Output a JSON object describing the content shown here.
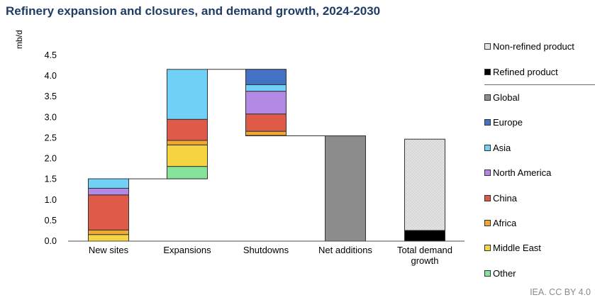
{
  "title": "Refinery expansion and closures, and demand growth, 2024-2030",
  "source": "IEA. CC BY 4.0",
  "chart_data": {
    "type": "bar",
    "subtype": "waterfall-stacked",
    "ylabel": "mb/d",
    "ylim": [
      0,
      4.5
    ],
    "yticks": [
      "0.0",
      "0.5",
      "1.0",
      "1.5",
      "2.0",
      "2.5",
      "3.0",
      "3.5",
      "4.0",
      "4.5"
    ],
    "grid": false,
    "legend_position": "right",
    "categories": [
      "New sites",
      "Expansions",
      "Shutdowns",
      "Net additions",
      "Total demand growth"
    ],
    "bars": [
      {
        "category": "New sites",
        "base": 0,
        "segments": [
          {
            "series": "Middle East",
            "value": 0.16
          },
          {
            "series": "Africa",
            "value": 0.11
          },
          {
            "series": "China",
            "value": 0.85
          },
          {
            "series": "North America",
            "value": 0.16
          },
          {
            "series": "Asia",
            "value": 0.23
          }
        ]
      },
      {
        "category": "Expansions",
        "base": 1.51,
        "segments": [
          {
            "series": "Other",
            "value": 0.3
          },
          {
            "series": "Middle East",
            "value": 0.52
          },
          {
            "series": "Africa",
            "value": 0.11
          },
          {
            "series": "China",
            "value": 0.51
          },
          {
            "series": "Asia",
            "value": 1.21
          }
        ]
      },
      {
        "category": "Shutdowns",
        "base": 2.55,
        "segments": [
          {
            "series": "Middle East",
            "value": 0.01
          },
          {
            "series": "Africa",
            "value": 0.1
          },
          {
            "series": "China",
            "value": 0.42
          },
          {
            "series": "North America",
            "value": 0.55
          },
          {
            "series": "Asia",
            "value": 0.16
          },
          {
            "series": "Europe",
            "value": 0.37
          }
        ]
      },
      {
        "category": "Net additions",
        "base": 0,
        "segments": [
          {
            "series": "Global",
            "value": 2.55
          }
        ]
      },
      {
        "category": "Total demand growth",
        "base": 0,
        "segments": [
          {
            "series": "Refined product",
            "value": 0.26
          },
          {
            "series": "Non-refined product",
            "value": 2.21
          }
        ]
      }
    ],
    "connectors": [
      1.51,
      4.16,
      2.55
    ],
    "series": [
      {
        "name": "Non-refined product",
        "color": "#e3e3e3"
      },
      {
        "name": "Refined product",
        "color": "#000000"
      },
      {
        "name": "Global",
        "color": "#8c8c8c"
      },
      {
        "name": "Europe",
        "color": "#4472c4"
      },
      {
        "name": "Asia",
        "color": "#70d0f5"
      },
      {
        "name": "North America",
        "color": "#b28ae6"
      },
      {
        "name": "China",
        "color": "#e05a4a"
      },
      {
        "name": "Africa",
        "color": "#f0a830"
      },
      {
        "name": "Middle East",
        "color": "#f5d442"
      },
      {
        "name": "Other",
        "color": "#86e39a"
      }
    ]
  }
}
